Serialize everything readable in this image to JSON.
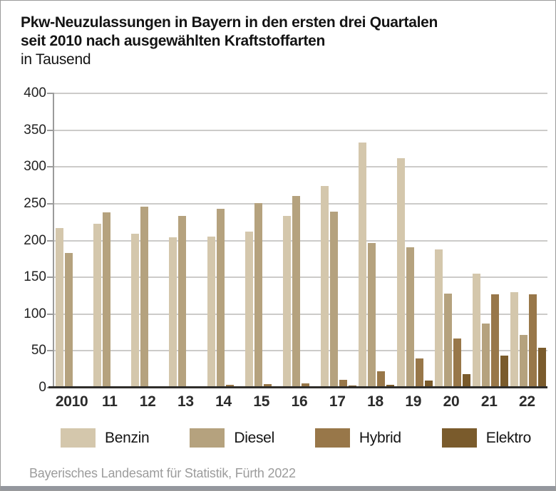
{
  "header": {
    "title_line1": "Pkw-Neuzulassungen in Bayern in den ersten drei Quartalen",
    "title_line2": "seit 2010 nach ausgewählten Kraftstoffarten",
    "subtitle": "in Tausend"
  },
  "footer": {
    "source": "Bayerisches Landesamt für Statistik, Fürth 2022"
  },
  "colors": {
    "benzin": "#d4c7ac",
    "diesel": "#b5a27e",
    "hybrid": "#987749",
    "elektro": "#7a5b2c",
    "gridline": "#cccbc9",
    "axis": "#9b9b9b",
    "zero_line": "#2e2d2b",
    "text": "#141414",
    "source_text": "#9c9c9c",
    "bottom_band": "#94979e"
  },
  "chart_data": {
    "type": "bar",
    "title": "Pkw-Neuzulassungen in Bayern in den ersten drei Quartalen seit 2010 nach ausgewählten Kraftstoffarten",
    "subtitle": "in Tausend",
    "xlabel": "",
    "ylabel": "in Tausend",
    "ylim": [
      0,
      400
    ],
    "yticks": [
      0,
      50,
      100,
      150,
      200,
      250,
      300,
      350,
      400
    ],
    "grid": true,
    "legend_position": "bottom",
    "categories": [
      "2010",
      "11",
      "12",
      "13",
      "14",
      "15",
      "16",
      "17",
      "18",
      "19",
      "20",
      "21",
      "22"
    ],
    "series": [
      {
        "name": "Benzin",
        "color": "#d4c7ac",
        "values": [
          217,
          223,
          209,
          204,
          205,
          212,
          233,
          274,
          333,
          312,
          188,
          155,
          130
        ]
      },
      {
        "name": "Diesel",
        "color": "#b5a27e",
        "values": [
          183,
          238,
          246,
          233,
          243,
          251,
          261,
          239,
          197,
          191,
          128,
          87,
          72
        ]
      },
      {
        "name": "Hybrid",
        "color": "#987749",
        "values": [
          0,
          0,
          2,
          2,
          4,
          5,
          6,
          11,
          22,
          40,
          67,
          127,
          127
        ]
      },
      {
        "name": "Elektro",
        "color": "#7a5b2c",
        "values": [
          0,
          0,
          0,
          0,
          0,
          0,
          1,
          3,
          4,
          10,
          18,
          44,
          54
        ]
      }
    ]
  }
}
